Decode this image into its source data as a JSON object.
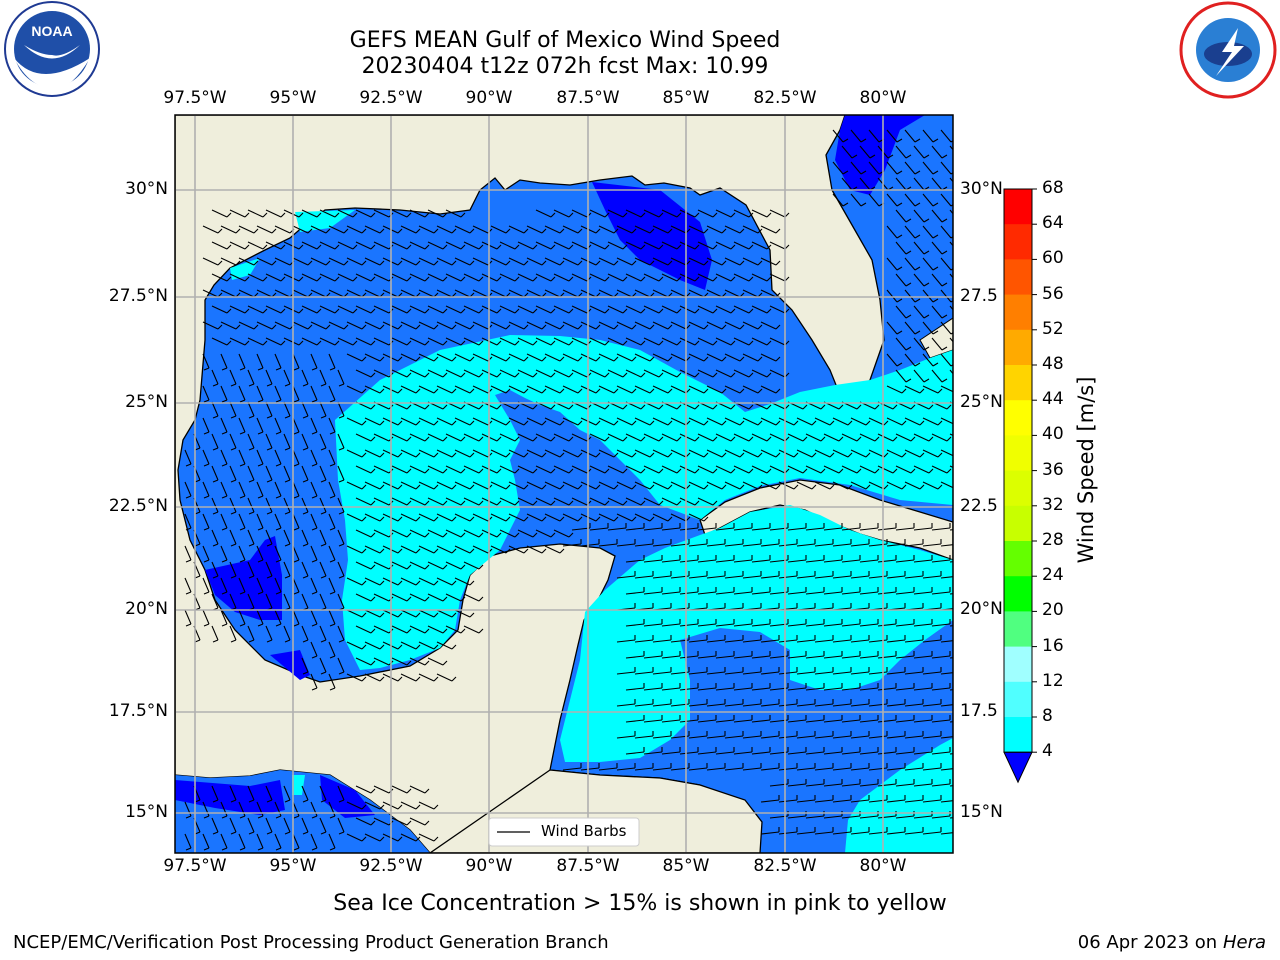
{
  "title_line1": "GEFS MEAN Gulf of Mexico Wind Speed",
  "title_line2": "20230404 t12z 072h fcst   Max: 10.99",
  "subtitle": "Sea Ice Concentration > 15% is shown in pink to yellow",
  "footer_left": "NCEP/EMC/Verification Post Processing Product Generation Branch",
  "footer_date": "06 Apr 2023 on ",
  "footer_host": "Hera",
  "legend_label": "Wind Barbs",
  "colorbar_title": "Wind Speed [m/s]",
  "logos": {
    "left": "NOAA",
    "right": "NATIONAL WEATHER SERVICE"
  },
  "lon_ticks": [
    "97.5°W",
    "95°W",
    "92.5°W",
    "90°W",
    "87.5°W",
    "85°W",
    "82.5°W",
    "80°W"
  ],
  "lat_ticks_left": [
    "30°N",
    "27.5°N",
    "25°N",
    "22.5°N",
    "20°N",
    "17.5°N",
    "15°N"
  ],
  "lat_ticks_right": [
    "30°N",
    "27.5",
    "25°N",
    "22.5",
    "20°N",
    "17.5",
    "15°N"
  ],
  "colorbar_levels": [
    "68",
    "64",
    "60",
    "56",
    "52",
    "48",
    "44",
    "40",
    "36",
    "32",
    "28",
    "24",
    "20",
    "16",
    "12",
    "8",
    "4"
  ],
  "colorbar_colors": [
    "#ff0000",
    "#ff2a00",
    "#ff5500",
    "#ff7f00",
    "#ffaa00",
    "#ffd400",
    "#ffff00",
    "#f0ff00",
    "#dcff00",
    "#c8ff00",
    "#64ff00",
    "#00ff00",
    "#50ff80",
    "#a0ffff",
    "#50ffff",
    "#00ffff",
    "#0080ff"
  ],
  "colors": {
    "land": "#efeedc",
    "wind_4_8": "#1a75ff",
    "wind_under_4": "#0000ff",
    "wind_8_12": "#00ffff",
    "grid": "#b0b0b0"
  }
}
